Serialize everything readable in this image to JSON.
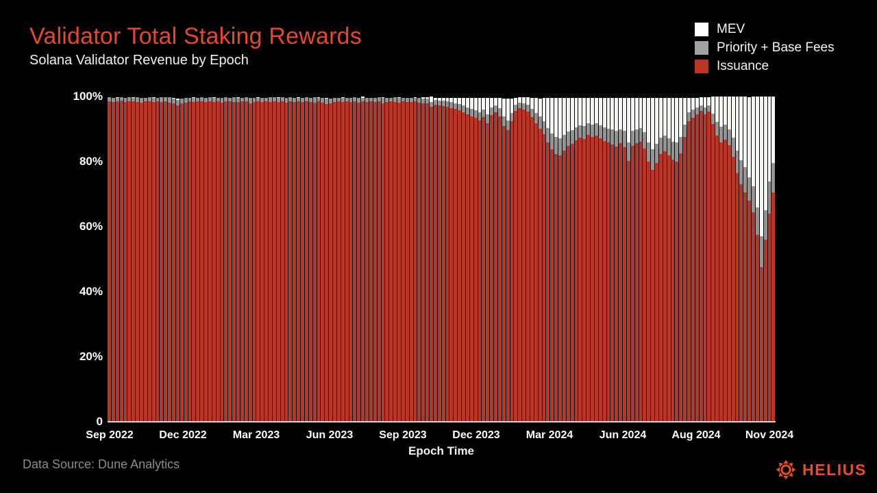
{
  "colors": {
    "background": "#000000",
    "title": "#E8472B",
    "subtitle": "#F2F2F2",
    "axis_labels": "#FFFFFF",
    "axis_line": "#D6D6D6",
    "source_text": "#8C8C8C",
    "brand": "#E84D28"
  },
  "footer": {
    "source": "Data Source: Dune Analytics",
    "brand": "HELIUS"
  },
  "chart_data": {
    "type": "bar",
    "stacking": "percent",
    "title": "Validator Total Staking Rewards",
    "subtitle": "Solana Validator Revenue by Epoch",
    "xlabel": "Epoch Time",
    "ylabel": "",
    "ylim": [
      0,
      100
    ],
    "grid": false,
    "legend_position": "top-right",
    "y_ticks": [
      "100%",
      "80%",
      "60%",
      "40%",
      "20%",
      "0"
    ],
    "y_tick_values": [
      100,
      80,
      60,
      40,
      20,
      0
    ],
    "x_ticks": [
      "Sep 2022",
      "Dec 2022",
      "Mar 2023",
      "Jun 2023",
      "Sep 2023",
      "Dec 2023",
      "Mar 2024",
      "Jun 2024",
      "Aug 2024",
      "Nov 2024"
    ],
    "legend": [
      {
        "key": "mev",
        "label": "MEV",
        "color": "#FFFFFF",
        "bar_color": "#F5F5F2"
      },
      {
        "key": "priority_base_fees",
        "label": "Priority + Base Fees",
        "color": "#A3A3A3",
        "bar_color": "#949494"
      },
      {
        "key": "issuance",
        "label": "Issuance",
        "color": "#BB3524",
        "bar_color": "#BB3524"
      }
    ],
    "series_order_bottom_to_top": [
      "issuance",
      "priority_base_fees",
      "mev"
    ],
    "bars_format": "[issuance_pct, priority_base_fees_pct, mev_pct] sampled per epoch group, Sep 2022 to Nov 2024",
    "bars": [
      [
        98.6,
        1.1,
        0
      ],
      [
        98.4,
        1.2,
        0
      ],
      [
        98.5,
        1.0,
        0.3
      ],
      [
        98.7,
        1.1,
        0
      ],
      [
        98.3,
        1.3,
        0
      ],
      [
        98.5,
        1.2,
        0
      ],
      [
        98.6,
        1.0,
        0.2
      ],
      [
        98.4,
        1.3,
        0
      ],
      [
        98.2,
        1.4,
        0
      ],
      [
        98.5,
        1.1,
        0
      ],
      [
        98.6,
        1.2,
        0
      ],
      [
        98.3,
        1.2,
        0.3
      ],
      [
        98.5,
        1.0,
        0
      ],
      [
        98.4,
        1.3,
        0
      ],
      [
        98.6,
        1.1,
        0
      ],
      [
        98.2,
        1.5,
        0
      ],
      [
        97.9,
        1.5,
        0.2
      ],
      [
        97.3,
        1.7,
        0.4
      ],
      [
        97.8,
        1.5,
        0
      ],
      [
        98.2,
        1.3,
        0
      ],
      [
        98.5,
        1.1,
        0
      ],
      [
        98.4,
        1.2,
        0.2
      ],
      [
        98.6,
        1.0,
        0
      ],
      [
        98.5,
        1.2,
        0
      ],
      [
        98.3,
        1.3,
        0
      ],
      [
        98.6,
        1.1,
        0
      ],
      [
        98.4,
        1.2,
        0.3
      ],
      [
        98.5,
        1.1,
        0
      ],
      [
        98.2,
        1.4,
        0
      ],
      [
        98.5,
        1.2,
        0
      ],
      [
        98.6,
        1.0,
        0
      ],
      [
        98.4,
        1.3,
        0
      ],
      [
        98.3,
        1.2,
        0.2
      ],
      [
        98.5,
        1.1,
        0
      ],
      [
        98.6,
        1.2,
        0
      ],
      [
        98.0,
        1.5,
        0
      ],
      [
        98.3,
        1.3,
        0
      ],
      [
        98.5,
        1.1,
        0.2
      ],
      [
        98.4,
        1.2,
        0
      ],
      [
        98.6,
        1.0,
        0
      ],
      [
        98.3,
        1.4,
        0
      ],
      [
        98.5,
        1.2,
        0
      ],
      [
        98.4,
        1.1,
        0.3
      ],
      [
        98.6,
        1.1,
        0
      ],
      [
        98.2,
        1.4,
        0
      ],
      [
        98.5,
        1.2,
        0
      ],
      [
        98.4,
        1.1,
        0
      ],
      [
        98.6,
        1.0,
        0.2
      ],
      [
        98.3,
        1.3,
        0
      ],
      [
        98.5,
        1.2,
        0
      ],
      [
        98.4,
        1.2,
        0
      ],
      [
        98.2,
        1.5,
        0
      ],
      [
        98.5,
        1.1,
        0.2
      ],
      [
        98.1,
        1.4,
        0
      ],
      [
        97.7,
        1.6,
        0.3
      ],
      [
        98.0,
        1.4,
        0
      ],
      [
        98.4,
        1.2,
        0
      ],
      [
        98.5,
        1.1,
        0
      ],
      [
        98.3,
        1.3,
        0.2
      ],
      [
        98.6,
        1.0,
        0
      ],
      [
        98.4,
        1.2,
        0
      ],
      [
        98.5,
        1.2,
        0
      ],
      [
        98.2,
        1.4,
        0
      ],
      [
        98.5,
        1.1,
        0.3
      ],
      [
        98.4,
        1.2,
        0
      ],
      [
        98.6,
        1.0,
        0
      ],
      [
        98.3,
        1.3,
        0
      ],
      [
        98.5,
        1.2,
        0
      ],
      [
        98.0,
        1.5,
        0.2
      ],
      [
        98.3,
        1.2,
        0
      ],
      [
        98.5,
        1.1,
        0
      ],
      [
        98.4,
        1.3,
        0
      ],
      [
        98.2,
        1.3,
        0.2
      ],
      [
        98.5,
        1.1,
        0
      ],
      [
        98.4,
        1.2,
        0
      ],
      [
        98.3,
        1.3,
        0
      ],
      [
        98.5,
        1.1,
        0.2
      ],
      [
        98.2,
        1.4,
        0
      ],
      [
        97.9,
        1.5,
        0.3
      ],
      [
        97.8,
        1.5,
        0.4
      ],
      [
        96.8,
        1.5,
        1.7
      ],
      [
        97.4,
        1.6,
        0.6
      ],
      [
        97.2,
        1.6,
        0.8
      ],
      [
        97.0,
        1.7,
        0.9
      ],
      [
        96.8,
        1.7,
        1.1
      ],
      [
        96.5,
        1.8,
        1.3
      ],
      [
        96.2,
        1.8,
        1.6
      ],
      [
        95.8,
        1.9,
        1.9
      ],
      [
        95.2,
        2.0,
        2.4
      ],
      [
        94.6,
        2.1,
        2.8
      ],
      [
        94.0,
        2.2,
        3.3
      ],
      [
        93.4,
        2.4,
        3.7
      ],
      [
        92.6,
        2.6,
        4.3
      ],
      [
        93.6,
        2.4,
        3.5
      ],
      [
        91.8,
        2.8,
        4.9
      ],
      [
        94.4,
        2.2,
        3.0
      ],
      [
        95.2,
        2.0,
        2.4
      ],
      [
        94.0,
        2.4,
        3.1
      ],
      [
        91.0,
        2.8,
        5.6
      ],
      [
        89.6,
        3.0,
        6.8
      ],
      [
        92.4,
        2.6,
        4.4
      ],
      [
        95.6,
        1.9,
        2.1
      ],
      [
        96.4,
        1.7,
        1.6
      ],
      [
        96.0,
        1.9,
        1.8
      ],
      [
        95.4,
        2.1,
        2.2
      ],
      [
        93.6,
        2.6,
        3.4
      ],
      [
        91.8,
        3.2,
        4.6
      ],
      [
        90.2,
        3.6,
        5.6
      ],
      [
        88.4,
        4.0,
        7.2
      ],
      [
        86.0,
        4.4,
        9.2
      ],
      [
        83.8,
        4.8,
        11.0
      ],
      [
        82.4,
        5.2,
        12.0
      ],
      [
        81.8,
        5.4,
        12.4
      ],
      [
        83.4,
        4.8,
        11.4
      ],
      [
        84.8,
        4.4,
        10.4
      ],
      [
        85.4,
        4.2,
        10.0
      ],
      [
        86.6,
        4.0,
        9.0
      ],
      [
        87.4,
        3.8,
        8.4
      ],
      [
        86.9,
        4.0,
        8.7
      ],
      [
        88.2,
        3.6,
        7.8
      ],
      [
        87.6,
        3.8,
        8.2
      ],
      [
        88.0,
        3.7,
        7.9
      ],
      [
        87.2,
        4.0,
        8.4
      ],
      [
        86.4,
        4.2,
        9.0
      ],
      [
        85.8,
        4.4,
        9.4
      ],
      [
        85.2,
        4.6,
        9.8
      ],
      [
        84.6,
        4.8,
        10.2
      ],
      [
        85.6,
        4.4,
        9.6
      ],
      [
        84.4,
        5.0,
        10.2
      ],
      [
        80.2,
        5.8,
        13.6
      ],
      [
        84.8,
        4.6,
        10.2
      ],
      [
        85.6,
        4.4,
        9.6
      ],
      [
        86.2,
        4.2,
        9.2
      ],
      [
        84.0,
        5.0,
        10.6
      ],
      [
        80.0,
        5.8,
        13.8
      ],
      [
        77.5,
        6.2,
        15.9
      ],
      [
        79.6,
        5.8,
        14.2
      ],
      [
        82.4,
        5.0,
        12.2
      ],
      [
        83.2,
        4.8,
        11.6
      ],
      [
        82.0,
        5.2,
        12.4
      ],
      [
        80.6,
        5.6,
        13.4
      ],
      [
        80.0,
        5.8,
        13.8
      ],
      [
        82.5,
        5.0,
        12.1
      ],
      [
        87.5,
        3.8,
        8.3
      ],
      [
        92.5,
        2.6,
        4.5
      ],
      [
        93.5,
        2.4,
        3.7
      ],
      [
        94.5,
        2.1,
        3.0
      ],
      [
        95.5,
        1.8,
        2.4
      ],
      [
        94.6,
        2.0,
        3.1
      ],
      [
        95.4,
        1.9,
        2.4
      ],
      [
        91.5,
        3.2,
        5.3
      ],
      [
        88.0,
        4.2,
        7.8
      ],
      [
        86.0,
        4.8,
        9.2
      ],
      [
        86.8,
        4.6,
        8.6
      ],
      [
        85.0,
        5.0,
        9.9
      ],
      [
        81.5,
        5.8,
        12.6
      ],
      [
        76.5,
        6.8,
        16.6
      ],
      [
        73.0,
        7.4,
        19.5
      ],
      [
        70.5,
        7.8,
        21.6
      ],
      [
        68.0,
        7.2,
        24.7
      ],
      [
        64.5,
        8.0,
        27.4
      ],
      [
        57.5,
        8.5,
        33.9
      ],
      [
        47.5,
        9.5,
        42.9
      ],
      [
        56.0,
        9.0,
        34.9
      ],
      [
        64.0,
        10.0,
        25.9
      ],
      [
        70.5,
        9.0,
        20.4
      ]
    ]
  }
}
